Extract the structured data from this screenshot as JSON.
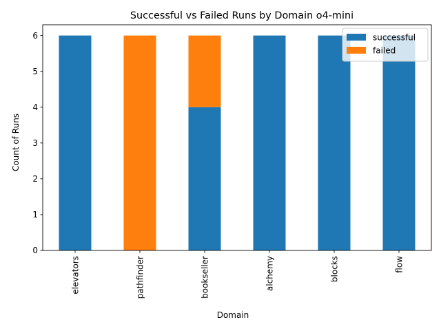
{
  "chart_data": {
    "type": "bar",
    "stacked": true,
    "title": "Successful vs Failed Runs by Domain o4-mini",
    "xlabel": "Domain",
    "ylabel": "Count of Runs",
    "categories": [
      "elevators",
      "pathfinder",
      "bookseller",
      "alchemy",
      "blocks",
      "flow"
    ],
    "series": [
      {
        "name": "successful",
        "values": [
          6,
          0,
          4,
          6,
          6,
          6
        ],
        "color": "#1f77b4"
      },
      {
        "name": "failed",
        "values": [
          0,
          6,
          2,
          0,
          0,
          0
        ],
        "color": "#ff7f0e"
      }
    ],
    "ylim": [
      0,
      6.3
    ],
    "yticks": [
      0,
      1,
      2,
      3,
      4,
      5,
      6
    ],
    "grid": false,
    "legend_position": "top-right"
  }
}
